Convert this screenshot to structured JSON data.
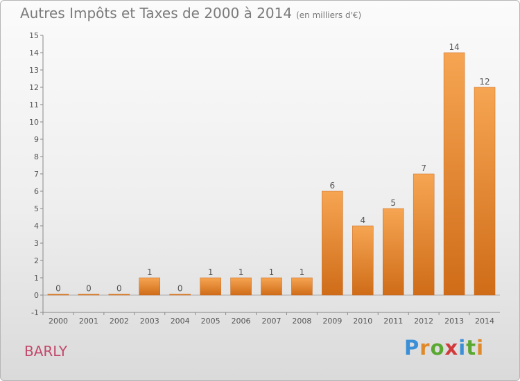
{
  "header": {
    "title": "Autres Impôts et Taxes de 2000 à 2014",
    "unit": "(en milliers d'€)"
  },
  "footer": {
    "commune": "BARLY",
    "brand_letters": [
      "P",
      "r",
      "o",
      "x",
      "i",
      "t",
      "i"
    ],
    "brand_colors": [
      "#3a8fd6",
      "#e0892a",
      "#5aa832",
      "#d23a3a",
      "#3a8fd6",
      "#5aa832",
      "#e0892a"
    ]
  },
  "chart_data": {
    "type": "bar",
    "title": "Autres Impôts et Taxes de 2000 à 2014",
    "subtitle": "(en milliers d'€)",
    "xlabel": "",
    "ylabel": "",
    "categories": [
      "2000",
      "2001",
      "2002",
      "2003",
      "2004",
      "2005",
      "2006",
      "2007",
      "2008",
      "2009",
      "2010",
      "2011",
      "2012",
      "2013",
      "2014"
    ],
    "values": [
      0,
      0,
      0,
      1,
      0,
      1,
      1,
      1,
      1,
      6,
      4,
      5,
      7,
      14,
      12
    ],
    "ylim": [
      -1,
      15
    ],
    "yticks": [
      "-1",
      "0",
      "1",
      "2",
      "3",
      "4",
      "5",
      "6",
      "7",
      "8",
      "9",
      "10",
      "11",
      "12",
      "13",
      "14",
      "15"
    ],
    "grid": false,
    "bar_color": "#e8842a"
  }
}
